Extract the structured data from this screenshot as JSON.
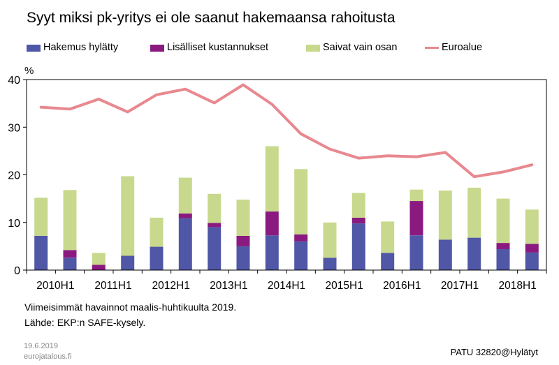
{
  "title": "Syyt miksi pk-yritys ei ole saanut hakemaansa rahoitusta",
  "legend": [
    {
      "label": "Hakemus hylätty",
      "color": "#4f57a6",
      "kind": "bar"
    },
    {
      "label": "Lisälliset kustannukset",
      "color": "#8a1a80",
      "kind": "bar"
    },
    {
      "label": "Saivat vain osan",
      "color": "#c8d98d",
      "kind": "bar"
    },
    {
      "label": "Euroalue",
      "color": "#e8888f",
      "kind": "line"
    }
  ],
  "chart_data": {
    "type": "bar",
    "stacked": true,
    "ylabel": "%",
    "ylim": [
      0,
      40
    ],
    "yticks": [
      0,
      10,
      20,
      30,
      40
    ],
    "categories": [
      "2010H1",
      "2010H2",
      "2011H1",
      "2011H2",
      "2012H1",
      "2012H2",
      "2013H1",
      "2013H2",
      "2014H1",
      "2014H2",
      "2015H1",
      "2015H2",
      "2016H1",
      "2016H2",
      "2017H1",
      "2017H2",
      "2018H1",
      "2018H2"
    ],
    "xticklabels": [
      "2010H1",
      "2011H1",
      "2012H1",
      "2013H1",
      "2014H1",
      "2015H1",
      "2016H1",
      "2017H1",
      "2018H1"
    ],
    "series": [
      {
        "name": "Hakemus hylätty",
        "color": "#4f57a6",
        "values": [
          7.2,
          2.6,
          0,
          3.0,
          4.9,
          10.9,
          9.0,
          5.0,
          7.3,
          6.0,
          2.6,
          9.8,
          3.6,
          7.3,
          6.4,
          6.8,
          4.4,
          3.7
        ]
      },
      {
        "name": "Lisälliset kustannukset",
        "color": "#8a1a80",
        "values": [
          0,
          1.6,
          1.1,
          0,
          0,
          1.0,
          0.9,
          2.2,
          5.0,
          1.5,
          0,
          1.2,
          0,
          7.2,
          0,
          0,
          1.3,
          1.8
        ]
      },
      {
        "name": "Saivat vain osan",
        "color": "#c8d98d",
        "values": [
          8.0,
          12.6,
          2.5,
          16.7,
          6.1,
          7.5,
          6.1,
          7.6,
          13.7,
          13.7,
          7.4,
          5.2,
          6.6,
          2.4,
          10.3,
          10.5,
          9.3,
          7.2
        ]
      },
      {
        "name": "Euroalue",
        "color": "#e8888f",
        "kind": "line",
        "values": [
          34.2,
          33.8,
          35.9,
          33.2,
          36.8,
          38.0,
          35.1,
          38.9,
          34.8,
          28.6,
          25.4,
          23.5,
          24.0,
          23.8,
          24.7,
          19.6,
          20.6,
          22.1
        ]
      }
    ],
    "grid": false
  },
  "notes": {
    "line1": "Viimeisimmät havainnot maalis-huhtikuulta 2019.",
    "line2": "Lähde: EKP:n SAFE-kysely."
  },
  "footer": {
    "date": "19.6.2019",
    "site": "eurojatalous.fi",
    "code": "PATU 32820@Hylätyt"
  }
}
